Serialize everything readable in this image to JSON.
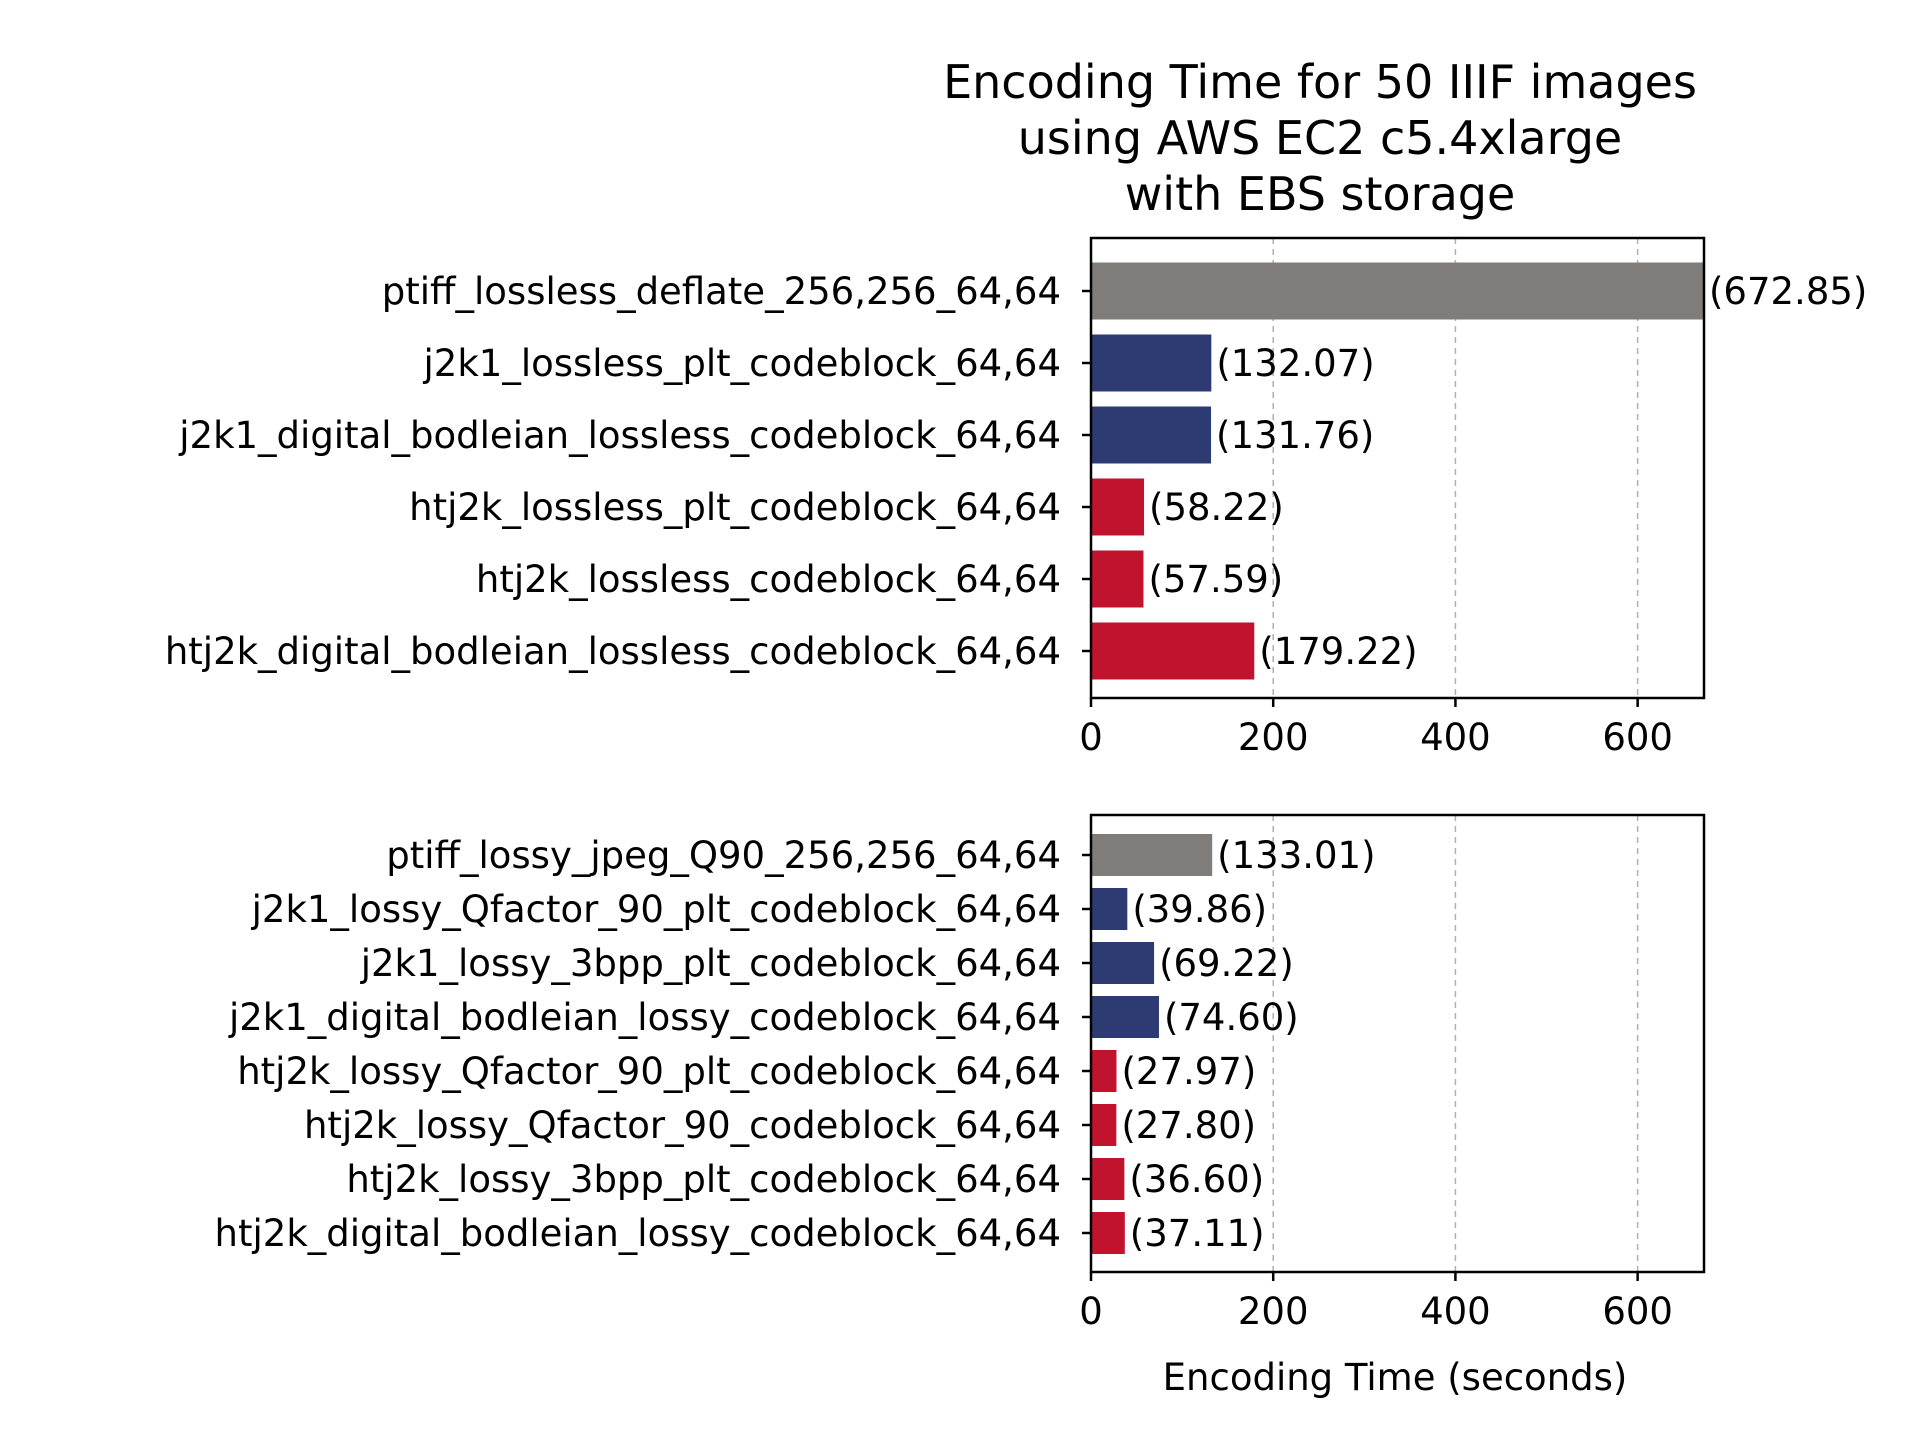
{
  "title_lines": [
    "Encoding Time for 50 IIIF images",
    "using AWS EC2 c5.4xlarge",
    "with EBS storage"
  ],
  "colors": {
    "ptiff": "#807c7a",
    "j2k1": "#2e3a72",
    "htj2k": "#c1132d"
  },
  "chart_data": [
    {
      "type": "bar",
      "orientation": "horizontal",
      "title": "Encoding Time for 50 IIIF images using AWS EC2 c5.4xlarge with EBS storage",
      "xlabel": "",
      "ylabel": "",
      "xlim": [
        0,
        672.85
      ],
      "xticks": [
        0,
        200,
        400,
        600
      ],
      "grid": "x dashed",
      "categories": [
        "ptiff_lossless_deflate_256,256_64,64",
        "j2k1_lossless_plt_codeblock_64,64",
        "j2k1_digital_bodleian_lossless_codeblock_64,64",
        "htj2k_lossless_plt_codeblock_64,64",
        "htj2k_lossless_codeblock_64,64",
        "htj2k_digital_bodleian_lossless_codeblock_64,64"
      ],
      "values": [
        672.85,
        132.07,
        131.76,
        58.22,
        57.59,
        179.22
      ],
      "labels": [
        "(672.85)",
        "(132.07)",
        "(131.76)",
        "(58.22)",
        "(57.59)",
        "(179.22)"
      ],
      "bar_groups": [
        "ptiff",
        "j2k1",
        "j2k1",
        "htj2k",
        "htj2k",
        "htj2k"
      ]
    },
    {
      "type": "bar",
      "orientation": "horizontal",
      "xlabel": "Encoding Time (seconds)",
      "ylabel": "",
      "xlim": [
        0,
        672.85
      ],
      "xticks": [
        0,
        200,
        400,
        600
      ],
      "grid": "x dashed",
      "categories": [
        "ptiff_lossy_jpeg_Q90_256,256_64,64",
        "j2k1_lossy_Qfactor_90_plt_codeblock_64,64",
        "j2k1_lossy_3bpp_plt_codeblock_64,64",
        "j2k1_digital_bodleian_lossy_codeblock_64,64",
        "htj2k_lossy_Qfactor_90_plt_codeblock_64,64",
        "htj2k_lossy_Qfactor_90_codeblock_64,64",
        "htj2k_lossy_3bpp_plt_codeblock_64,64",
        "htj2k_digital_bodleian_lossy_codeblock_64,64"
      ],
      "values": [
        133.01,
        39.86,
        69.22,
        74.6,
        27.97,
        27.8,
        36.6,
        37.11
      ],
      "labels": [
        "(133.01)",
        "(39.86)",
        "(69.22)",
        "(74.60)",
        "(27.97)",
        "(27.80)",
        "(36.60)",
        "(37.11)"
      ],
      "bar_groups": [
        "ptiff",
        "j2k1",
        "j2k1",
        "j2k1",
        "htj2k",
        "htj2k",
        "htj2k",
        "htj2k"
      ]
    }
  ]
}
